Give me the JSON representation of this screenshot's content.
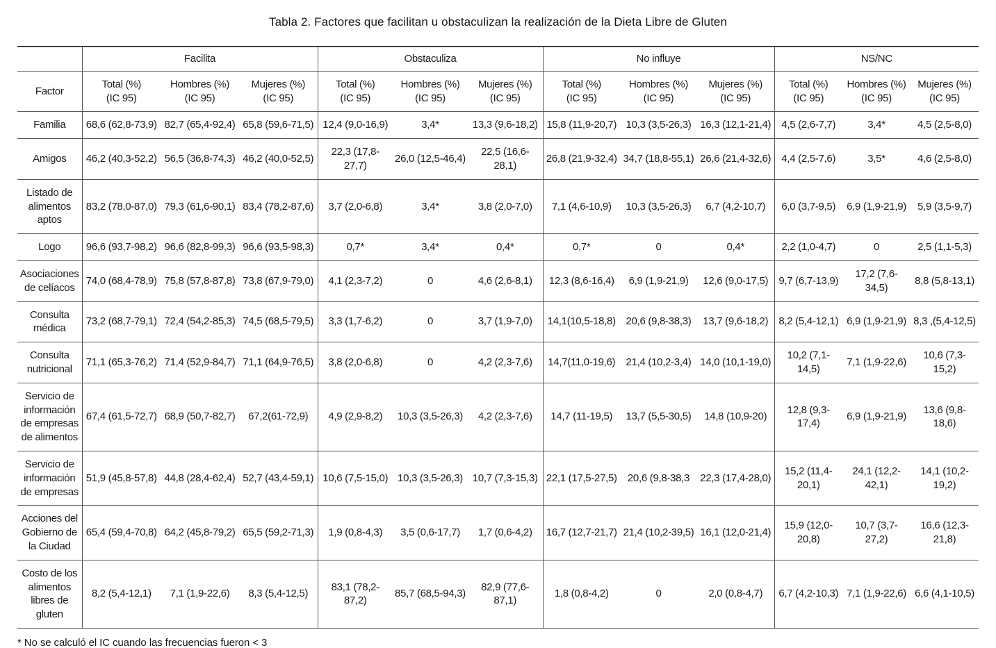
{
  "page": {
    "title": "Tabla 2. Factores que facilitan u obstaculizan la realización de la Dieta Libre de Gluten",
    "footnote": "* No se calculó el IC cuando las frecuencias fueron < 3"
  },
  "colors": {
    "background": "#ffffff",
    "text": "#1c1c1c",
    "border": "#585858",
    "border_top": "#3d3d3d"
  },
  "table": {
    "factor_header": "Factor",
    "groups": [
      "Facilita",
      "Obstaculiza",
      "No influye",
      "NS/NC"
    ],
    "subheaders": [
      "Total (%)",
      "Hombres (%)",
      "Mujeres (%)"
    ],
    "ic_label": "(IC 95)",
    "rows": [
      {
        "factor": "Familia",
        "values": [
          "68,6 (62,8-73,9)",
          "82,7 (65,4-92,4)",
          "65,8 (59,6-71,5)",
          "12,4 (9,0-16,9)",
          "3,4*",
          "13,3 (9,6-18,2)",
          "15,8 (11,9-20,7)",
          "10,3 (3,5-26,3)",
          "16,3 (12,1-21,4)",
          "4,5 (2,6-7,7)",
          "3,4*",
          "4,5 (2,5-8,0)"
        ]
      },
      {
        "factor": "Amigos",
        "values": [
          "46,2 (40,3-52,2)",
          "56,5 (36,8-74,3)",
          "46,2 (40,0-52,5)",
          "22,3 (17,8-27,7)",
          "26,0 (12,5-46,4)",
          "22,5 (16,6-28,1)",
          "26,8 (21,9-32,4)",
          "34,7 (18,8-55,1)",
          "26,6 (21,4-32,6)",
          "4,4 (2,5-7,6)",
          "3,5*",
          "4,6 (2,5-8,0)"
        ]
      },
      {
        "factor": "Listado de alimentos aptos",
        "values": [
          "83,2 (78,0-87,0)",
          "79,3 (61,6-90,1)",
          "83,4 (78,2-87,6)",
          "3,7 (2,0-6,8)",
          "3,4*",
          "3,8 (2,0-7,0)",
          "7,1 (4,6-10,9)",
          "10,3 (3,5-26,3)",
          "6,7 (4,2-10,7)",
          "6,0 (3,7-9,5)",
          "6,9 (1,9-21,9)",
          "5,9 (3,5-9,7)"
        ]
      },
      {
        "factor": "Logo",
        "values": [
          "96,6 (93,7-98,2)",
          "96,6 (82,8-99,3)",
          "96,6 (93,5-98,3)",
          "0,7*",
          "3,4*",
          "0,4*",
          "0,7*",
          "0",
          "0,4*",
          "2,2 (1,0-4,7)",
          "0",
          "2,5 (1,1-5,3)"
        ]
      },
      {
        "factor": "Asociaciones de celíacos",
        "values": [
          "74,0 (68,4-78,9)",
          "75,8 (57,8-87,8)",
          "73,8 (67,9-79,0)",
          "4,1 (2,3-7,2)",
          "0",
          "4,6 (2,6-8,1)",
          "12,3 (8,6-16,4)",
          "6,9 (1,9-21,9)",
          "12,6 (9,0-17,5)",
          "9,7 (6,7-13,9)",
          "17,2 (7,6-34,5)",
          "8,8 (5,8-13,1)"
        ]
      },
      {
        "factor": "Consulta médica",
        "values": [
          "73,2 (68,7-79,1)",
          "72,4 (54,2-85,3)",
          "74,5 (68,5-79,5)",
          "3,3 (1,7-6,2)",
          "0",
          "3,7 (1,9-7,0)",
          "14,1(10,5-18,8)",
          "20,6 (9,8-38,3)",
          "13,7 (9,6-18,2)",
          "8,2 (5,4-12,1)",
          "6,9 (1,9-21,9)",
          "8,3 ,(5,4-12,5)"
        ]
      },
      {
        "factor": "Consulta nutricional",
        "values": [
          "71,1 (65,3-76,2)",
          "71,4 (52,9-84,7)",
          "71,1 (64,9-76,5)",
          "3,8 (2,0-6,8)",
          "0",
          "4,2 (2,3-7,6)",
          "14,7(11,0-19,6)",
          "21,4 (10,2-3,4)",
          "14,0 (10,1-19,0)",
          "10,2 (7,1-14,5)",
          "7,1 (1,9-22,6)",
          "10,6 (7,3-15,2)"
        ]
      },
      {
        "factor": "Servicio de información de empresas de alimentos",
        "values": [
          "67,4 (61,5-72,7)",
          "68,9 (50,7-82,7)",
          "67,2(61-72,9)",
          "4,9 (2,9-8,2)",
          "10,3 (3,5-26,3)",
          "4,2 (2,3-7,6)",
          "14,7 (11-19,5)",
          "13,7 (5,5-30,5)",
          "14,8 (10,9-20)",
          "12,8 (9,3-17,4)",
          "6,9 (1,9-21,9)",
          "13,6 (9,8-18,6)"
        ]
      },
      {
        "factor": "Servicio de información de empresas",
        "values": [
          "51,9 (45,8-57,8)",
          "44,8 (28,4-62,4)",
          "52,7 (43,4-59,1)",
          "10,6 (7,5-15,0)",
          "10,3 (3,5-26,3)",
          "10,7 (7,3-15,3)",
          "22,1 (17,5-27,5)",
          "20,6 (9,8-38,3",
          "22,3 (17,4-28,0)",
          "15,2 (11,4-20,1)",
          "24,1 (12,2-42,1)",
          "14,1 (10,2-19,2)"
        ]
      },
      {
        "factor": "Acciones del Gobierno de la Ciudad",
        "values": [
          "65,4 (59,4-70,8)",
          "64,2 (45,8-79,2)",
          "65,5 (59,2-71,3)",
          "1,9 (0,8-4,3)",
          "3,5 (0,6-17,7)",
          "1,7 (0,6-4,2)",
          "16,7 (12,7-21,7)",
          "21,4 (10,2-39,5)",
          "16,1 (12,0-21,4)",
          "15,9 (12,0-20,8)",
          "10,7 (3,7-27,2)",
          "16,6 (12,3-21,8)"
        ]
      },
      {
        "factor": "Costo de los alimentos libres de gluten",
        "values": [
          "8,2 (5,4-12,1)",
          "7,1 (1,9-22,6)",
          "8,3 (5,4-12,5)",
          "83,1 (78,2-87,2)",
          "85,7 (68,5-94,3)",
          "82,9 (77,6-87,1)",
          "1,8 (0,8-4,2)",
          "0",
          "2,0 (0,8-4,7)",
          "6,7 (4,2-10,3)",
          "7,1 (1,9-22,6)",
          "6,6 (4,1-10,5)"
        ]
      }
    ]
  }
}
